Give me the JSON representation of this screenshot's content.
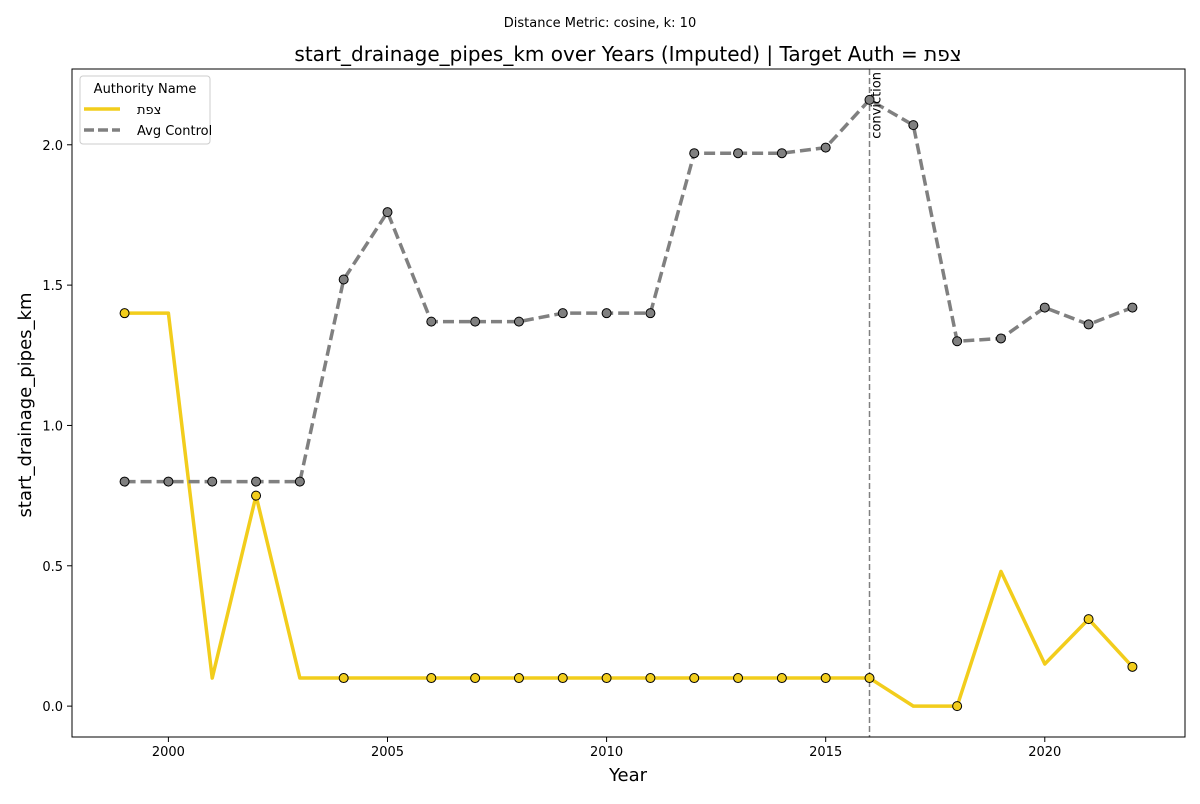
{
  "chart_data": {
    "type": "line",
    "suptitle": "Distance Metric: cosine, k: 10",
    "title": "start_drainage_pipes_km over Years (Imputed) | Target Auth = צפת",
    "xlabel": "Year",
    "ylabel": "start_drainage_pipes_km",
    "xlim": [
      1997.8,
      2023.2
    ],
    "ylim": [
      -0.11,
      2.27
    ],
    "xticks": [
      2000,
      2005,
      2010,
      2015,
      2020
    ],
    "yticks": [
      0.0,
      0.5,
      1.0,
      1.5,
      2.0
    ],
    "ytick_labels": [
      "0.0",
      "0.5",
      "1.0",
      "1.5",
      "2.0"
    ],
    "grid": false,
    "legend": {
      "title": "Authority Name",
      "placement": "top-left"
    },
    "annotation": {
      "x": 2016,
      "text": "conviction",
      "color": "#808080"
    },
    "x": [
      1999,
      2000,
      2001,
      2002,
      2003,
      2004,
      2005,
      2006,
      2007,
      2008,
      2009,
      2010,
      2011,
      2012,
      2013,
      2014,
      2015,
      2016,
      2017,
      2018,
      2019,
      2020,
      2021,
      2022
    ],
    "series": [
      {
        "name": "צפת",
        "color": "#F2CD1C",
        "dash": "solid",
        "values": [
          1.4,
          1.4,
          0.1,
          0.75,
          0.1,
          0.1,
          0.1,
          0.1,
          0.1,
          0.1,
          0.1,
          0.1,
          0.1,
          0.1,
          0.1,
          0.1,
          0.1,
          0.1,
          0.0,
          0.0,
          0.48,
          0.15,
          0.31,
          0.14
        ],
        "markers": [
          1999,
          2002,
          2004,
          2006,
          2007,
          2008,
          2009,
          2010,
          2011,
          2012,
          2013,
          2014,
          2015,
          2016,
          2018,
          2021,
          2022
        ]
      },
      {
        "name": "Avg Control",
        "color": "#808080",
        "dash": "dashed",
        "values": [
          0.8,
          0.8,
          0.8,
          0.8,
          0.8,
          1.52,
          1.76,
          1.37,
          1.37,
          1.37,
          1.4,
          1.4,
          1.4,
          1.97,
          1.97,
          1.97,
          1.99,
          2.16,
          2.07,
          1.3,
          1.31,
          1.42,
          1.36,
          1.42
        ],
        "markers": [
          1999,
          2000,
          2001,
          2002,
          2003,
          2004,
          2005,
          2006,
          2007,
          2008,
          2009,
          2010,
          2011,
          2012,
          2013,
          2014,
          2015,
          2016,
          2017,
          2018,
          2019,
          2020,
          2021,
          2022
        ]
      }
    ]
  }
}
